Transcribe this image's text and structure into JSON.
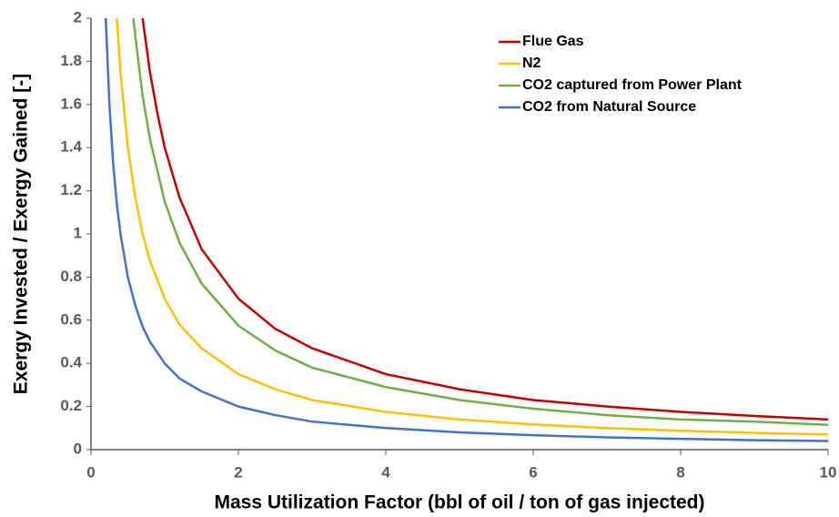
{
  "chart_data": {
    "type": "line",
    "xlabel": "Mass Utilization Factor (bbl of oil / ton of gas injected)",
    "ylabel": "Exergy Invested / Exergy Gained [-]",
    "xlim": [
      0,
      10
    ],
    "xticks": [
      0,
      2,
      4,
      6,
      8,
      10
    ],
    "ylim": [
      0,
      2
    ],
    "yticks": [
      0,
      0.2,
      0.4,
      0.6,
      0.8,
      1,
      1.2,
      1.4,
      1.6,
      1.8,
      2
    ],
    "legend": "upper right",
    "series": [
      {
        "name": "Flue Gas",
        "color": "#c00000",
        "x": [
          0.7,
          0.8,
          0.9,
          1,
          1.2,
          1.5,
          2,
          2.5,
          3,
          4,
          5,
          6,
          7,
          8,
          9,
          10
        ],
        "values": [
          2,
          1.75,
          1.56,
          1.4,
          1.17,
          0.93,
          0.7,
          0.56,
          0.47,
          0.35,
          0.28,
          0.23,
          0.2,
          0.175,
          0.156,
          0.14
        ]
      },
      {
        "name": "N2",
        "color": "#ffc000",
        "x": [
          0.35,
          0.4,
          0.5,
          0.6,
          0.7,
          0.8,
          1,
          1.2,
          1.5,
          2,
          2.5,
          3,
          4,
          5,
          6,
          7,
          8,
          9,
          10
        ],
        "values": [
          2,
          1.75,
          1.4,
          1.17,
          1,
          0.875,
          0.7,
          0.58,
          0.47,
          0.35,
          0.28,
          0.23,
          0.175,
          0.14,
          0.117,
          0.1,
          0.0875,
          0.078,
          0.07
        ]
      },
      {
        "name": "CO2 captured from Power Plant",
        "color": "#70ad47",
        "x": [
          0.575,
          0.6,
          0.7,
          0.8,
          1,
          1.2,
          1.5,
          2,
          2.5,
          3,
          4,
          5,
          6,
          7,
          8,
          9,
          10
        ],
        "values": [
          2,
          1.92,
          1.64,
          1.44,
          1.15,
          0.96,
          0.77,
          0.575,
          0.46,
          0.38,
          0.29,
          0.23,
          0.19,
          0.16,
          0.14,
          0.13,
          0.115
        ]
      },
      {
        "name": "CO2 from Natural Source",
        "color": "#4472c4",
        "x": [
          0.2,
          0.25,
          0.3,
          0.35,
          0.4,
          0.5,
          0.6,
          0.7,
          0.8,
          1,
          1.2,
          1.5,
          2,
          2.5,
          3,
          4,
          5,
          6,
          7,
          8,
          9,
          10
        ],
        "values": [
          2,
          1.6,
          1.33,
          1.14,
          1,
          0.8,
          0.67,
          0.57,
          0.5,
          0.4,
          0.33,
          0.27,
          0.2,
          0.16,
          0.13,
          0.1,
          0.08,
          0.067,
          0.057,
          0.05,
          0.044,
          0.04
        ]
      }
    ]
  }
}
